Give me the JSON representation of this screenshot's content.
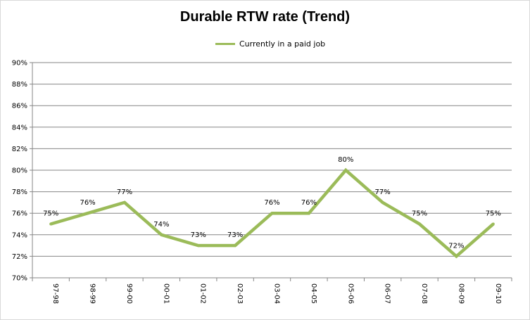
{
  "chart_data": {
    "type": "line",
    "title": "Durable RTW rate (Trend)",
    "xlabel": "",
    "ylabel": "",
    "categories": [
      "97-98",
      "98-99",
      "99-00",
      "00-01",
      "01-02",
      "02-03",
      "03-04",
      "04-05",
      "05-06",
      "06-07",
      "07-08",
      "08-09",
      "09-10"
    ],
    "series": [
      {
        "name": "Currently in a paid job",
        "values": [
          75,
          76,
          77,
          74,
          73,
          73,
          76,
          76,
          80,
          77,
          75,
          72,
          75
        ],
        "labels": [
          "75%",
          "76%",
          "77%",
          "74%",
          "73%",
          "73%",
          "76%",
          "76%",
          "80%",
          "77%",
          "75%",
          "72%",
          "75%"
        ],
        "color": "#9bbb59"
      }
    ],
    "ylim": [
      70,
      90
    ],
    "yticks": [
      70,
      72,
      74,
      76,
      78,
      80,
      82,
      84,
      86,
      88,
      90
    ],
    "ytick_labels": [
      "70%",
      "72%",
      "74%",
      "76%",
      "78%",
      "80%",
      "82%",
      "84%",
      "86%",
      "88%",
      "90%"
    ],
    "grid": true,
    "legend_position": "top"
  }
}
